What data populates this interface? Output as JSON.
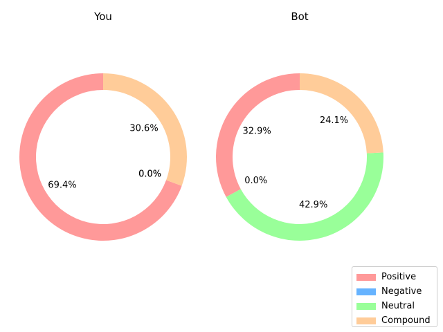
{
  "chart_data": [
    {
      "type": "pie",
      "title": "You",
      "categories": [
        "Positive",
        "Negative",
        "Neutral",
        "Compound"
      ],
      "values": [
        69.4,
        0.0,
        0.0,
        30.6
      ],
      "labels": [
        "69.4%",
        "0.0%",
        "0.0%",
        "30.6%"
      ],
      "donut": true
    },
    {
      "type": "pie",
      "title": "Bot",
      "categories": [
        "Positive",
        "Negative",
        "Neutral",
        "Compound"
      ],
      "values": [
        32.9,
        0.0,
        42.9,
        24.1
      ],
      "labels": [
        "32.9%",
        "0.0%",
        "42.9%",
        "24.1%"
      ],
      "donut": true
    }
  ],
  "legend": {
    "position": "bottom-right",
    "items": [
      {
        "label": "Positive",
        "color": "#ff9999"
      },
      {
        "label": "Negative",
        "color": "#66b3ff"
      },
      {
        "label": "Neutral",
        "color": "#99ff99"
      },
      {
        "label": "Compound",
        "color": "#ffcc99"
      }
    ]
  }
}
